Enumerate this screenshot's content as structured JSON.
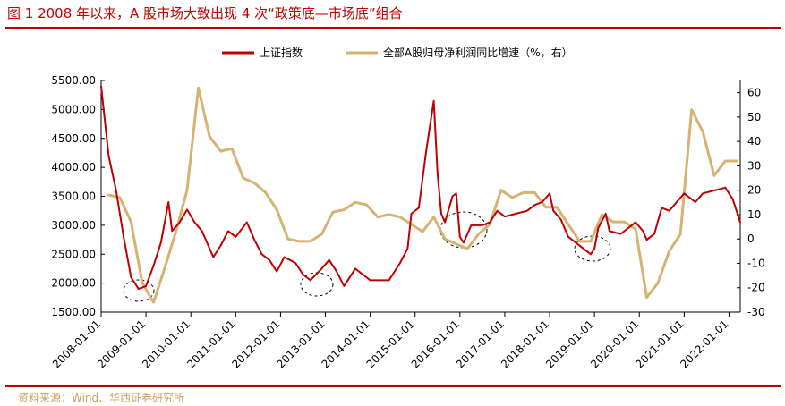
{
  "title": "图 1 2008 年以来，A 股市场大致出现 4 次“政策底—市场底”组合",
  "source": "资料来源：Wind、华西证券研究所",
  "colors": {
    "index": "#c00000",
    "profit": "#d6b273",
    "title": "#c00000",
    "source": "#c9a064"
  },
  "chart_data": {
    "type": "line",
    "title": "图 1 2008 年以来，A 股市场大致出现 4 次“政策底—市场底”组合",
    "legend_placement": "top-center",
    "grid": false,
    "x_tick_labels": [
      "2008-01-01",
      "2009-01-01",
      "2010-01-01",
      "2011-01-01",
      "2012-01-01",
      "2013-01-01",
      "2014-01-01",
      "2015-01-01",
      "2016-01-01",
      "2017-01-01",
      "2018-01-01",
      "2019-01-01",
      "2020-01-01",
      "2021-01-01",
      "2022-01-01"
    ],
    "y_left": {
      "ylim": [
        1500,
        5500
      ],
      "ticks": [
        "1500.00",
        "2000.00",
        "2500.00",
        "3000.00",
        "3500.00",
        "4000.00",
        "4500.00",
        "5000.00",
        "5500.00"
      ]
    },
    "y_right": {
      "ylim": [
        -30,
        65
      ],
      "ticks": [
        "-30",
        "-20",
        "-10",
        "0",
        "10",
        "20",
        "30",
        "40",
        "50",
        "60"
      ]
    },
    "series": [
      {
        "name": "上证指数",
        "axis": "left",
        "x": [
          "2008-01",
          "2008-03",
          "2008-05",
          "2008-07",
          "2008-09",
          "2008-11",
          "2009-01",
          "2009-03",
          "2009-05",
          "2009-07",
          "2009-08",
          "2009-10",
          "2009-12",
          "2010-02",
          "2010-04",
          "2010-07",
          "2010-09",
          "2010-11",
          "2011-01",
          "2011-04",
          "2011-06",
          "2011-08",
          "2011-10",
          "2011-12",
          "2012-02",
          "2012-05",
          "2012-07",
          "2012-09",
          "2012-12",
          "2013-02",
          "2013-04",
          "2013-06",
          "2013-09",
          "2013-11",
          "2014-01",
          "2014-03",
          "2014-06",
          "2014-09",
          "2014-11",
          "2014-12",
          "2015-02",
          "2015-04",
          "2015-06",
          "2015-07",
          "2015-08",
          "2015-09",
          "2015-11",
          "2015-12",
          "2016-01",
          "2016-02",
          "2016-04",
          "2016-07",
          "2016-09",
          "2016-11",
          "2017-01",
          "2017-04",
          "2017-07",
          "2017-09",
          "2017-11",
          "2018-01",
          "2018-02",
          "2018-04",
          "2018-06",
          "2018-08",
          "2018-10",
          "2018-12",
          "2019-01",
          "2019-02",
          "2019-04",
          "2019-05",
          "2019-08",
          "2019-10",
          "2019-12",
          "2020-02",
          "2020-03",
          "2020-05",
          "2020-07",
          "2020-09",
          "2020-11",
          "2021-01",
          "2021-02",
          "2021-04",
          "2021-06",
          "2021-09",
          "2021-12",
          "2022-01",
          "2022-02",
          "2022-03",
          "2022-04"
        ],
        "values": [
          5400,
          4200,
          3600,
          2800,
          2100,
          1900,
          1950,
          2300,
          2700,
          3400,
          2900,
          3050,
          3270,
          3050,
          2900,
          2450,
          2650,
          2900,
          2800,
          3050,
          2750,
          2500,
          2400,
          2200,
          2450,
          2350,
          2150,
          2050,
          2250,
          2400,
          2200,
          1950,
          2250,
          2150,
          2050,
          2050,
          2050,
          2350,
          2600,
          3200,
          3300,
          4300,
          5150,
          3900,
          3200,
          3050,
          3500,
          3550,
          2800,
          2700,
          3000,
          3000,
          3050,
          3250,
          3150,
          3200,
          3250,
          3350,
          3400,
          3550,
          3250,
          3100,
          2800,
          2700,
          2600,
          2500,
          2600,
          2950,
          3200,
          2900,
          2850,
          2950,
          3050,
          2900,
          2750,
          2850,
          3300,
          3250,
          3400,
          3550,
          3500,
          3400,
          3550,
          3600,
          3650,
          3550,
          3450,
          3250,
          3050
        ]
      },
      {
        "name": "全部A股归母净利润同比增速（%，右）",
        "axis": "right",
        "x": [
          "2008-03",
          "2008-06",
          "2008-09",
          "2008-12",
          "2009-03",
          "2009-06",
          "2009-09",
          "2009-12",
          "2010-03",
          "2010-06",
          "2010-09",
          "2010-12",
          "2011-03",
          "2011-06",
          "2011-09",
          "2011-12",
          "2012-03",
          "2012-06",
          "2012-09",
          "2012-12",
          "2013-03",
          "2013-06",
          "2013-09",
          "2013-12",
          "2014-03",
          "2014-06",
          "2014-09",
          "2014-12",
          "2015-03",
          "2015-06",
          "2015-09",
          "2015-12",
          "2016-03",
          "2016-06",
          "2016-09",
          "2016-12",
          "2017-03",
          "2017-06",
          "2017-09",
          "2017-12",
          "2018-03",
          "2018-06",
          "2018-09",
          "2018-12",
          "2019-03",
          "2019-06",
          "2019-09",
          "2019-12",
          "2020-03",
          "2020-06",
          "2020-09",
          "2020-12",
          "2021-03",
          "2021-06",
          "2021-09",
          "2021-12",
          "2022-03"
        ],
        "values": [
          18,
          17,
          7,
          -18,
          -26,
          -12,
          3,
          20,
          62,
          42,
          36,
          37,
          25,
          23,
          19,
          12,
          0,
          -1,
          -1,
          2,
          11,
          12,
          15,
          14,
          9,
          10,
          9,
          6,
          3,
          9,
          0,
          -2,
          -4,
          2,
          6,
          20,
          17,
          19,
          19,
          13,
          13,
          6,
          -1,
          -1,
          10,
          7,
          7,
          4,
          -24,
          -18,
          -5,
          2,
          53,
          44,
          26,
          32,
          32
        ]
      }
    ]
  }
}
